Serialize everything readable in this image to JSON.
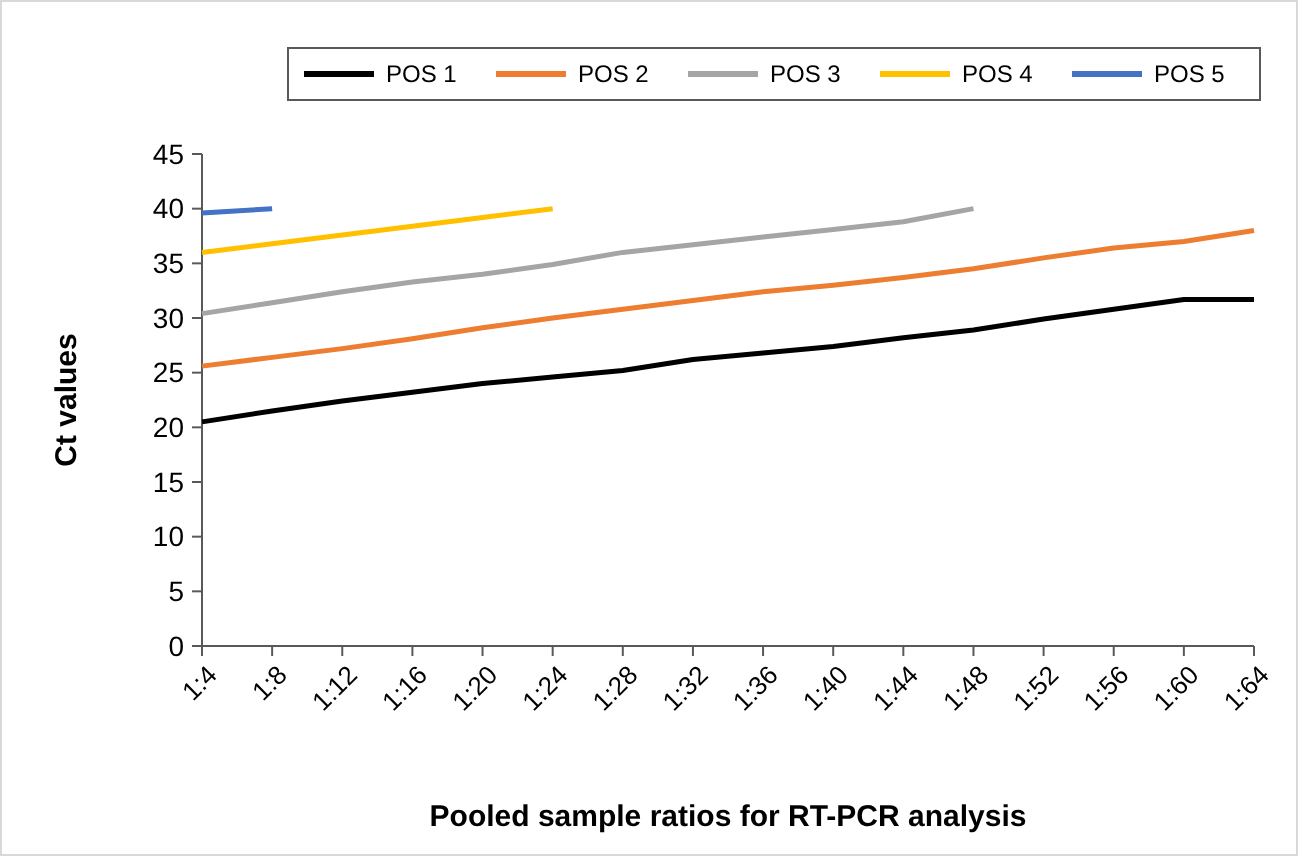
{
  "chart_data": {
    "type": "line",
    "xlabel": "Pooled sample ratios for RT-PCR analysis",
    "ylabel": "Ct values",
    "categories": [
      "1:4",
      "1:8",
      "1:12",
      "1:16",
      "1:20",
      "1:24",
      "1:28",
      "1:32",
      "1:36",
      "1:40",
      "1:44",
      "1:48",
      "1:52",
      "1:56",
      "1:60",
      "1:64"
    ],
    "series": [
      {
        "name": "POS 1",
        "color": "#000000",
        "values": [
          20.5,
          21.5,
          22.4,
          23.2,
          24,
          24.6,
          25.2,
          26.2,
          26.8,
          27.4,
          28.2,
          28.9,
          29.9,
          30.8,
          31.7,
          31.7
        ]
      },
      {
        "name": "POS 2",
        "color": "#ed7d31",
        "values": [
          25.6,
          26.4,
          27.2,
          28.1,
          29.1,
          30,
          30.8,
          31.6,
          32.4,
          33,
          33.7,
          34.5,
          35.5,
          36.4,
          37,
          38
        ]
      },
      {
        "name": "POS 3",
        "color": "#a5a5a5",
        "values": [
          30.4,
          31.4,
          32.4,
          33.3,
          34,
          34.9,
          36,
          36.7,
          37.4,
          38.1,
          38.8,
          40,
          null,
          null,
          null,
          null
        ]
      },
      {
        "name": "POS 4",
        "color": "#ffc000",
        "values": [
          36,
          36.8,
          37.6,
          38.4,
          39.2,
          40,
          null,
          null,
          null,
          null,
          null,
          null,
          null,
          null,
          null,
          null
        ]
      },
      {
        "name": "POS 5",
        "color": "#4472c4",
        "values": [
          39.6,
          40,
          null,
          null,
          null,
          null,
          null,
          null,
          null,
          null,
          null,
          null,
          null,
          null,
          null,
          null
        ]
      }
    ],
    "ylim": [
      0,
      45
    ],
    "yticks": [
      0,
      5,
      10,
      15,
      20,
      25,
      30,
      35,
      40,
      45
    ],
    "grid": false,
    "legend": "top",
    "marker": "none",
    "line_style": "solid"
  }
}
